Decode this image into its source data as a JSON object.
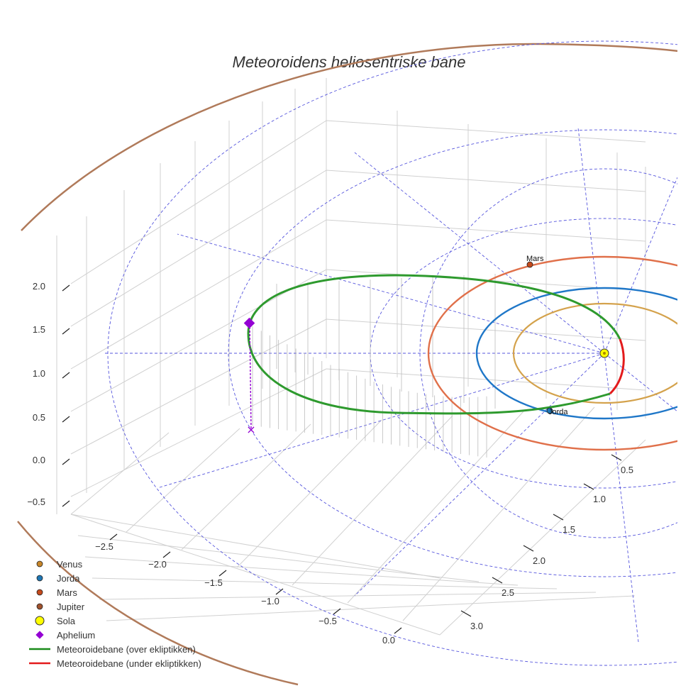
{
  "chart_data": {
    "type": "line",
    "title": "Meteoroidens heliosentriske bane",
    "axes": {
      "x_ticks": [
        "−2.5",
        "−2.0",
        "−1.5",
        "−1.0",
        "−0.5",
        "0.0"
      ],
      "y_ticks": [
        "0.5",
        "1.0",
        "1.5",
        "2.0",
        "2.5",
        "3.0"
      ],
      "z_ticks": [
        "−0.5",
        "0.0",
        "0.5",
        "1.0",
        "1.5",
        "2.0"
      ],
      "grid": true
    },
    "planet_labels": {
      "mars": "Mars",
      "earth": "Jorda"
    },
    "orbits": [
      {
        "name": "Venus",
        "semi_major_au": 0.72,
        "color": "#d4a24c"
      },
      {
        "name": "Jorda",
        "semi_major_au": 1.0,
        "color": "#1f77c8"
      },
      {
        "name": "Mars",
        "semi_major_au": 1.52,
        "color": "#e0704a"
      },
      {
        "name": "Jupiter",
        "semi_major_au": 5.2,
        "color": "#b07a5a"
      }
    ],
    "meteoroid": {
      "aphelion_au": [
        -2.1,
        1.6,
        1.45
      ],
      "aphelion_projection_z": 0.0
    },
    "legend": [
      {
        "label": "Venus",
        "marker": "circle",
        "color": "#c8862a"
      },
      {
        "label": "Jorda",
        "marker": "circle",
        "color": "#1f77b4"
      },
      {
        "label": "Mars",
        "marker": "circle",
        "color": "#c44a1c"
      },
      {
        "label": "Jupiter",
        "marker": "circle",
        "color": "#a0522d"
      },
      {
        "label": "Sola",
        "marker": "circle-big",
        "color": "#ffff00"
      },
      {
        "label": "Aphelium",
        "marker": "diamond",
        "color": "#9400d3"
      },
      {
        "label": "Meteoroidebane (over ekliptikken)",
        "marker": "line",
        "color": "#1a8a1a"
      },
      {
        "label": "Meteoroidebane (under ekliptikken)",
        "marker": "line",
        "color": "#e31a1c"
      }
    ]
  }
}
